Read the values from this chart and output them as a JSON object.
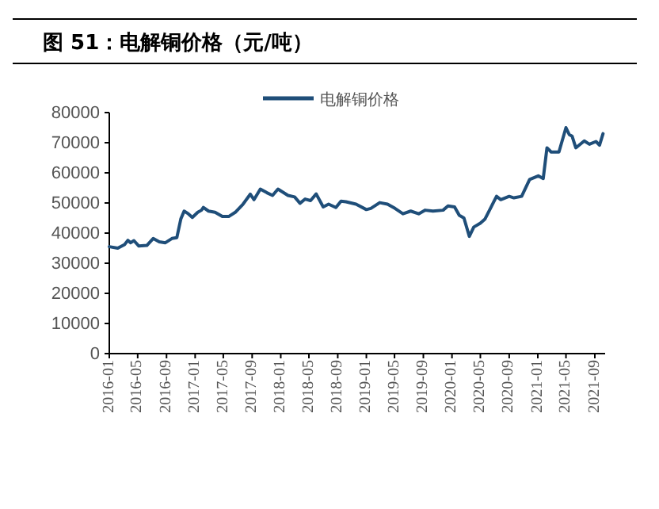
{
  "chart_data": {
    "type": "line",
    "title": "图 51：电解铜价格（元/吨）",
    "x": [
      "2016-01-01",
      "2016-02-06",
      "2016-03-06",
      "2016-03-20",
      "2016-04-01",
      "2016-04-15",
      "2016-05-06",
      "2016-06-09",
      "2016-07-06",
      "2016-08-01",
      "2016-08-27",
      "2016-09-24",
      "2016-10-15",
      "2016-11-01",
      "2016-11-15",
      "2016-12-03",
      "2016-12-20",
      "2017-01-12",
      "2017-01-28",
      "2017-02-05",
      "2017-02-27",
      "2017-03-27",
      "2017-04-27",
      "2017-05-24",
      "2017-06-21",
      "2017-07-24",
      "2017-08-24",
      "2017-09-09",
      "2017-10-06",
      "2017-11-03",
      "2017-11-27",
      "2017-12-20",
      "2018-02-01",
      "2018-03-01",
      "2018-03-24",
      "2018-04-15",
      "2018-05-08",
      "2018-06-01",
      "2018-07-01",
      "2018-07-24",
      "2018-08-24",
      "2018-09-15",
      "2018-10-06",
      "2018-11-18",
      "2019-01-01",
      "2019-01-20",
      "2019-02-27",
      "2019-04-01",
      "2019-05-03",
      "2019-06-06",
      "2019-07-09",
      "2019-08-12",
      "2019-09-09",
      "2019-10-12",
      "2019-11-24",
      "2019-12-15",
      "2020-01-12",
      "2020-02-01",
      "2020-02-21",
      "2020-03-15",
      "2020-04-03",
      "2020-05-01",
      "2020-05-21",
      "2020-06-18",
      "2020-07-09",
      "2020-07-27",
      "2020-09-01",
      "2020-09-21",
      "2020-10-24",
      "2020-11-27",
      "2021-01-03",
      "2021-01-24",
      "2021-02-09",
      "2021-02-27",
      "2021-04-01",
      "2021-05-01",
      "2021-05-15",
      "2021-05-27",
      "2021-06-12",
      "2021-07-18",
      "2021-08-09",
      "2021-09-06",
      "2021-09-21",
      "2021-10-06"
    ],
    "series": [
      {
        "name": "电解铜价格",
        "color": "#1f4e79",
        "values": [
          35500,
          35000,
          36200,
          37600,
          36800,
          37500,
          35700,
          35900,
          38200,
          37100,
          36800,
          38200,
          38500,
          44700,
          47300,
          46400,
          45200,
          46900,
          47600,
          48500,
          47300,
          46900,
          45500,
          45500,
          46900,
          49600,
          52900,
          51100,
          54600,
          53400,
          52500,
          54600,
          52500,
          52000,
          49900,
          51300,
          50800,
          53000,
          48700,
          49600,
          48500,
          50600,
          50400,
          49600,
          47800,
          48200,
          50100,
          49600,
          48200,
          46400,
          47300,
          46400,
          47600,
          47300,
          47600,
          49000,
          48700,
          45900,
          45000,
          38900,
          42000,
          43300,
          44700,
          49000,
          52200,
          51100,
          52200,
          51700,
          52200,
          57800,
          59000,
          58100,
          68300,
          66900,
          66900,
          75000,
          72700,
          72200,
          68300,
          70600,
          69500,
          70400,
          69200,
          73000
        ]
      }
    ],
    "xlim": [
      "2016-01-01",
      "2021-10-15"
    ],
    "xticks": [
      {
        "value": "2016-01-01",
        "label": "2016-01"
      },
      {
        "value": "2016-05-01",
        "label": "2016-05"
      },
      {
        "value": "2016-09-01",
        "label": "2016-09"
      },
      {
        "value": "2017-01-01",
        "label": "2017-01"
      },
      {
        "value": "2017-05-01",
        "label": "2017-05"
      },
      {
        "value": "2017-09-01",
        "label": "2017-09"
      },
      {
        "value": "2018-01-01",
        "label": "2018-01"
      },
      {
        "value": "2018-05-01",
        "label": "2018-05"
      },
      {
        "value": "2018-09-01",
        "label": "2018-09"
      },
      {
        "value": "2019-01-01",
        "label": "2019-01"
      },
      {
        "value": "2019-05-01",
        "label": "2019-05"
      },
      {
        "value": "2019-09-01",
        "label": "2019-09"
      },
      {
        "value": "2020-01-01",
        "label": "2020-01"
      },
      {
        "value": "2020-05-01",
        "label": "2020-05"
      },
      {
        "value": "2020-09-01",
        "label": "2020-09"
      },
      {
        "value": "2021-01-01",
        "label": "2021-01"
      },
      {
        "value": "2021-05-01",
        "label": "2021-05"
      },
      {
        "value": "2021-09-01",
        "label": "2021-09"
      }
    ],
    "ylim": [
      0,
      80000
    ],
    "yticks": [
      0,
      10000,
      20000,
      30000,
      40000,
      50000,
      60000,
      70000,
      80000
    ],
    "legend": "top",
    "grid": false,
    "marker": "none",
    "line_style": "solid"
  }
}
